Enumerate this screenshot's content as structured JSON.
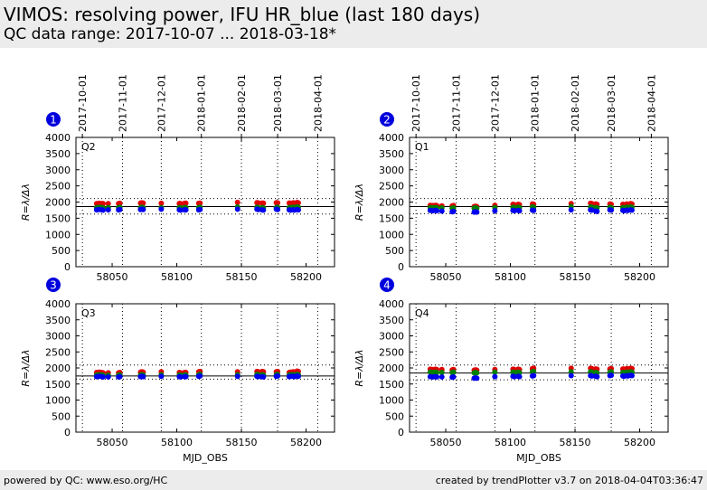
{
  "header": {
    "title": "VIMOS: resolving power, IFU HR_blue (last 180 days)",
    "subtitle": "QC data range: 2017-10-07 ... 2018-03-18*"
  },
  "footer": {
    "left": "powered by QC: www.eso.org/HC",
    "right": "created by trendPlotter v3.7 on 2018-04-04T03:36:47"
  },
  "colors": {
    "header_bg": "#ececec",
    "series_red": "#e00000",
    "series_green": "#008000",
    "series_blue": "#0000ee",
    "badge": "#0000dd"
  },
  "chart_data": {
    "type": "scatter",
    "xlabel": "MJD_OBS",
    "ylabel": "R=λ/Δλ",
    "xlim": [
      58022,
      58222
    ],
    "ylim": [
      0,
      4000
    ],
    "xticks": [
      58050,
      58100,
      58150,
      58200
    ],
    "yticks": [
      0,
      500,
      1000,
      1500,
      2000,
      2500,
      3000,
      3500,
      4000
    ],
    "date_ticks": [
      {
        "mjd": 58027,
        "label": "2017-10-01"
      },
      {
        "mjd": 58058,
        "label": "2017-11-01"
      },
      {
        "mjd": 58088,
        "label": "2017-12-01"
      },
      {
        "mjd": 58119,
        "label": "2018-01-01"
      },
      {
        "mjd": 58150,
        "label": "2018-02-01"
      },
      {
        "mjd": 58178,
        "label": "2018-03-01"
      },
      {
        "mjd": 58209,
        "label": "2018-04-01"
      }
    ],
    "x": [
      58038,
      58040,
      58042,
      58043,
      58047,
      58055,
      58056,
      58072,
      58073,
      58074,
      58088,
      58102,
      58103,
      58106,
      58107,
      58117,
      58118,
      58147,
      58162,
      58163,
      58166,
      58167,
      58177,
      58178,
      58187,
      58188,
      58190,
      58191,
      58193,
      58194
    ],
    "panels": [
      {
        "badge": "1",
        "label": "Q2",
        "ref": 1860,
        "lower": 1630,
        "upper": 2110,
        "series": [
          {
            "color": "red",
            "values": [
              1950,
              1960,
              1955,
              1950,
              1950,
              1950,
              1960,
              1970,
              1975,
              1970,
              1960,
              1955,
              1950,
              1960,
              1965,
              1960,
              1965,
              1990,
              1980,
              1975,
              1970,
              1965,
              1980,
              1975,
              1970,
              1965,
              1975,
              1970,
              1985,
              1975
            ]
          },
          {
            "color": "green",
            "values": [
              1830,
              1840,
              1830,
              1820,
              1830,
              1830,
              1840,
              1830,
              1840,
              1830,
              1830,
              1830,
              1820,
              1830,
              1830,
              1830,
              1840,
              1850,
              1840,
              1830,
              1830,
              1820,
              1830,
              1840,
              1830,
              1830,
              1840,
              1830,
              1850,
              1840
            ]
          },
          {
            "color": "blue",
            "values": [
              1760,
              1770,
              1760,
              1750,
              1760,
              1760,
              1770,
              1770,
              1780,
              1770,
              1780,
              1760,
              1750,
              1760,
              1760,
              1760,
              1770,
              1780,
              1780,
              1770,
              1760,
              1750,
              1780,
              1770,
              1760,
              1750,
              1760,
              1750,
              1770,
              1760
            ]
          }
        ]
      },
      {
        "badge": "2",
        "label": "Q1",
        "ref": 1860,
        "lower": 1640,
        "upper": 2110,
        "series": [
          {
            "color": "red",
            "values": [
              1900,
              1890,
              1900,
              1890,
              1880,
              1880,
              1890,
              1860,
              1870,
              1860,
              1900,
              1930,
              1920,
              1930,
              1920,
              1940,
              1930,
              1950,
              1960,
              1950,
              1940,
              1930,
              1940,
              1930,
              1930,
              1920,
              1940,
              1930,
              1950,
              1940
            ]
          },
          {
            "color": "green",
            "values": [
              1830,
              1820,
              1830,
              1820,
              1820,
              1810,
              1820,
              1810,
              1820,
              1810,
              1830,
              1840,
              1830,
              1840,
              1830,
              1850,
              1840,
              1860,
              1850,
              1840,
              1830,
              1820,
              1840,
              1830,
              1830,
              1820,
              1840,
              1830,
              1850,
              1840
            ]
          },
          {
            "color": "blue",
            "values": [
              1740,
              1730,
              1740,
              1730,
              1720,
              1700,
              1710,
              1690,
              1700,
              1690,
              1730,
              1740,
              1730,
              1740,
              1730,
              1750,
              1740,
              1760,
              1760,
              1750,
              1720,
              1710,
              1760,
              1750,
              1740,
              1730,
              1750,
              1740,
              1760,
              1750
            ]
          }
        ]
      },
      {
        "badge": "3",
        "label": "Q3",
        "ref": 1750,
        "lower": 1650,
        "upper": 2090,
        "series": [
          {
            "color": "red",
            "values": [
              1860,
              1870,
              1860,
              1850,
              1850,
              1850,
              1860,
              1870,
              1880,
              1870,
              1880,
              1860,
              1850,
              1860,
              1860,
              1880,
              1890,
              1880,
              1890,
              1880,
              1890,
              1880,
              1880,
              1890,
              1860,
              1870,
              1880,
              1870,
              1900,
              1890
            ]
          },
          {
            "color": "green",
            "values": [
              1780,
              1790,
              1780,
              1770,
              1770,
              1770,
              1780,
              1780,
              1790,
              1780,
              1790,
              1780,
              1770,
              1780,
              1780,
              1790,
              1800,
              1790,
              1800,
              1790,
              1790,
              1780,
              1790,
              1800,
              1780,
              1790,
              1790,
              1780,
              1800,
              1790
            ]
          },
          {
            "color": "blue",
            "values": [
              1730,
              1740,
              1730,
              1720,
              1720,
              1720,
              1730,
              1730,
              1740,
              1730,
              1740,
              1730,
              1720,
              1730,
              1730,
              1740,
              1750,
              1740,
              1740,
              1730,
              1730,
              1720,
              1740,
              1750,
              1730,
              1740,
              1740,
              1730,
              1750,
              1740
            ]
          }
        ]
      },
      {
        "badge": "4",
        "label": "Q4",
        "ref": 1840,
        "lower": 1630,
        "upper": 2090,
        "series": [
          {
            "color": "red",
            "values": [
              1960,
              1950,
              1960,
              1950,
              1950,
              1940,
              1950,
              1930,
              1940,
              1930,
              1950,
              1960,
              1950,
              1960,
              1950,
              1980,
              1990,
              1990,
              1990,
              1980,
              1970,
              1960,
              1970,
              1980,
              1970,
              1960,
              1980,
              1970,
              1990,
              1980
            ]
          },
          {
            "color": "green",
            "values": [
              1870,
              1860,
              1870,
              1860,
              1860,
              1860,
              1870,
              1850,
              1860,
              1850,
              1870,
              1870,
              1860,
              1870,
              1860,
              1880,
              1890,
              1880,
              1880,
              1870,
              1860,
              1850,
              1870,
              1880,
              1860,
              1850,
              1870,
              1860,
              1880,
              1870
            ]
          },
          {
            "color": "blue",
            "values": [
              1730,
              1720,
              1730,
              1720,
              1720,
              1710,
              1720,
              1680,
              1690,
              1680,
              1730,
              1740,
              1730,
              1740,
              1730,
              1750,
              1760,
              1760,
              1760,
              1750,
              1740,
              1730,
              1760,
              1770,
              1750,
              1740,
              1760,
              1750,
              1770,
              1760
            ]
          }
        ]
      }
    ]
  }
}
